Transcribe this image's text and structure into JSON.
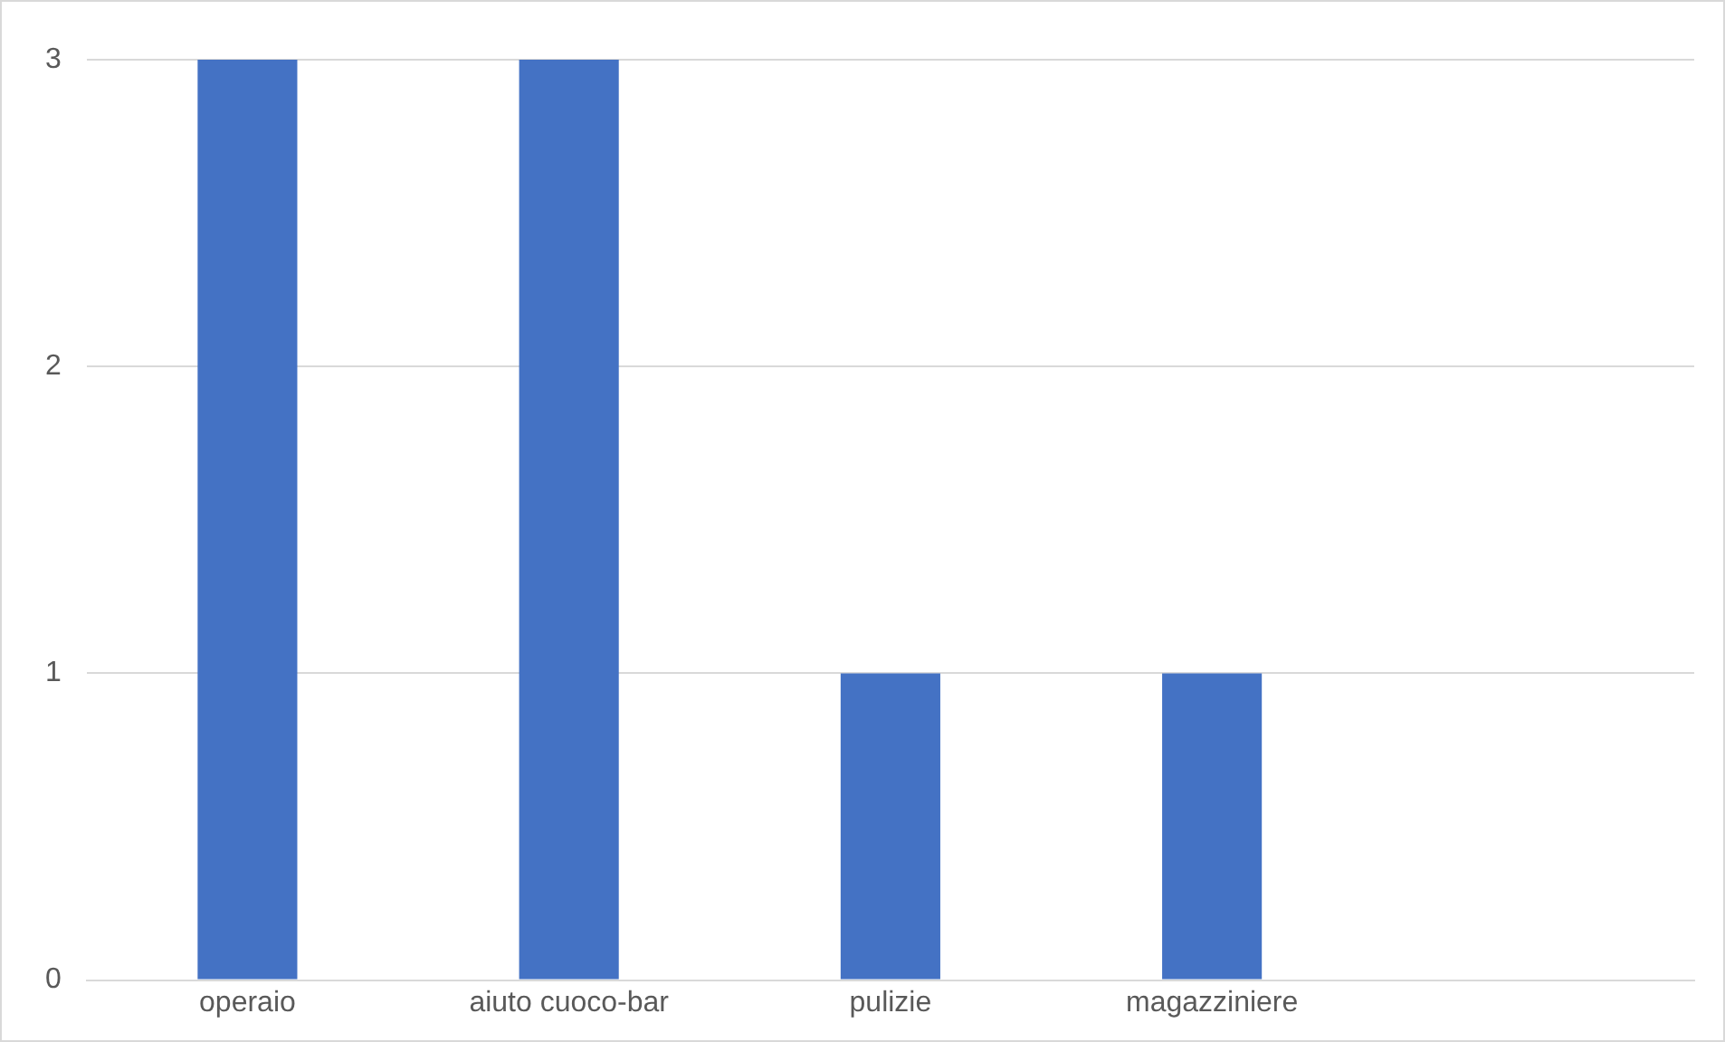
{
  "chart_data": {
    "type": "bar",
    "categories": [
      "operaio",
      "aiuto cuoco-bar",
      "pulizie",
      "magazziniere",
      null
    ],
    "values": [
      3,
      3,
      1,
      1,
      null
    ],
    "color": "#4472c4",
    "ylim": [
      0,
      3
    ],
    "yticks": [
      0,
      1,
      2,
      3
    ],
    "grid": "y",
    "legend": false
  }
}
